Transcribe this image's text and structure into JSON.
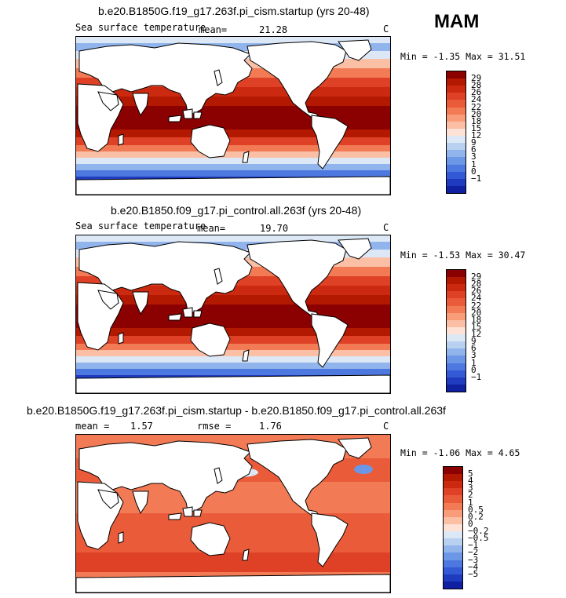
{
  "season": "MAM",
  "panels": [
    {
      "title": "b.e20.B1850G.f19_g17.263f.pi_cism.startup (yrs 20-48)",
      "variable": "Sea surface temperature",
      "stat1_label": "mean=",
      "stat1_value": "21.28",
      "stat2_label": "",
      "stat2_value": "",
      "units": "C",
      "min_label": "Min =",
      "min_value": "-1.35",
      "max_label": "Max =",
      "max_value": "31.51",
      "colorbar": {
        "ticks": [
          "29",
          "28",
          "26",
          "24",
          "22",
          "20",
          "18",
          "15",
          "12",
          "9",
          "6",
          "3",
          "1",
          "0",
          "−1"
        ],
        "colors": [
          "#8b0000",
          "#b31800",
          "#cc2a10",
          "#de4125",
          "#ea5b3a",
          "#f27a55",
          "#f89c7a",
          "#fbbfa5",
          "#fde2d5",
          "#dde8f7",
          "#b9d1f0",
          "#90b4eb",
          "#6c97e6",
          "#4d78e0",
          "#3459d4",
          "#1f3cc0",
          "#0f20a0"
        ]
      },
      "field": "sst"
    },
    {
      "title": "b.e20.B1850.f09_g17.pi_control.all.263f (yrs 20-48)",
      "variable": "Sea surface temperature",
      "stat1_label": "mean=",
      "stat1_value": "19.70",
      "stat2_label": "",
      "stat2_value": "",
      "units": "C",
      "min_label": "Min =",
      "min_value": "-1.53",
      "max_label": "Max =",
      "max_value": "30.47",
      "colorbar": {
        "ticks": [
          "29",
          "28",
          "26",
          "24",
          "22",
          "20",
          "18",
          "15",
          "12",
          "9",
          "6",
          "3",
          "1",
          "0",
          "−1"
        ],
        "colors": [
          "#8b0000",
          "#b31800",
          "#cc2a10",
          "#de4125",
          "#ea5b3a",
          "#f27a55",
          "#f89c7a",
          "#fbbfa5",
          "#fde2d5",
          "#dde8f7",
          "#b9d1f0",
          "#90b4eb",
          "#6c97e6",
          "#4d78e0",
          "#3459d4",
          "#1f3cc0",
          "#0f20a0"
        ]
      },
      "field": "sst"
    },
    {
      "title": "b.e20.B1850G.f19_g17.263f.pi_cism.startup - b.e20.B1850.f09_g17.pi_control.all.263f",
      "variable": "",
      "stat1_label": "mean =",
      "stat1_value": "1.57",
      "stat2_label": "rmse =",
      "stat2_value": "1.76",
      "units": "C",
      "min_label": "Min =",
      "min_value": "-1.06",
      "max_label": "Max =",
      "max_value": "4.65",
      "colorbar": {
        "ticks": [
          "5",
          "4",
          "3",
          "2",
          "1",
          "0.5",
          "0.2",
          "0",
          "−0.2",
          "−0.5",
          "−1",
          "−2",
          "−3",
          "−4",
          "−5"
        ],
        "colors": [
          "#8b0000",
          "#b31800",
          "#cc2a10",
          "#de4125",
          "#ea5b3a",
          "#f27a55",
          "#f89c7a",
          "#fbbfa5",
          "#fde2d5",
          "#dde8f7",
          "#b9d1f0",
          "#90b4eb",
          "#6c97e6",
          "#4d78e0",
          "#3459d4",
          "#1f3cc0",
          "#0f20a0"
        ]
      },
      "field": "diff"
    }
  ]
}
